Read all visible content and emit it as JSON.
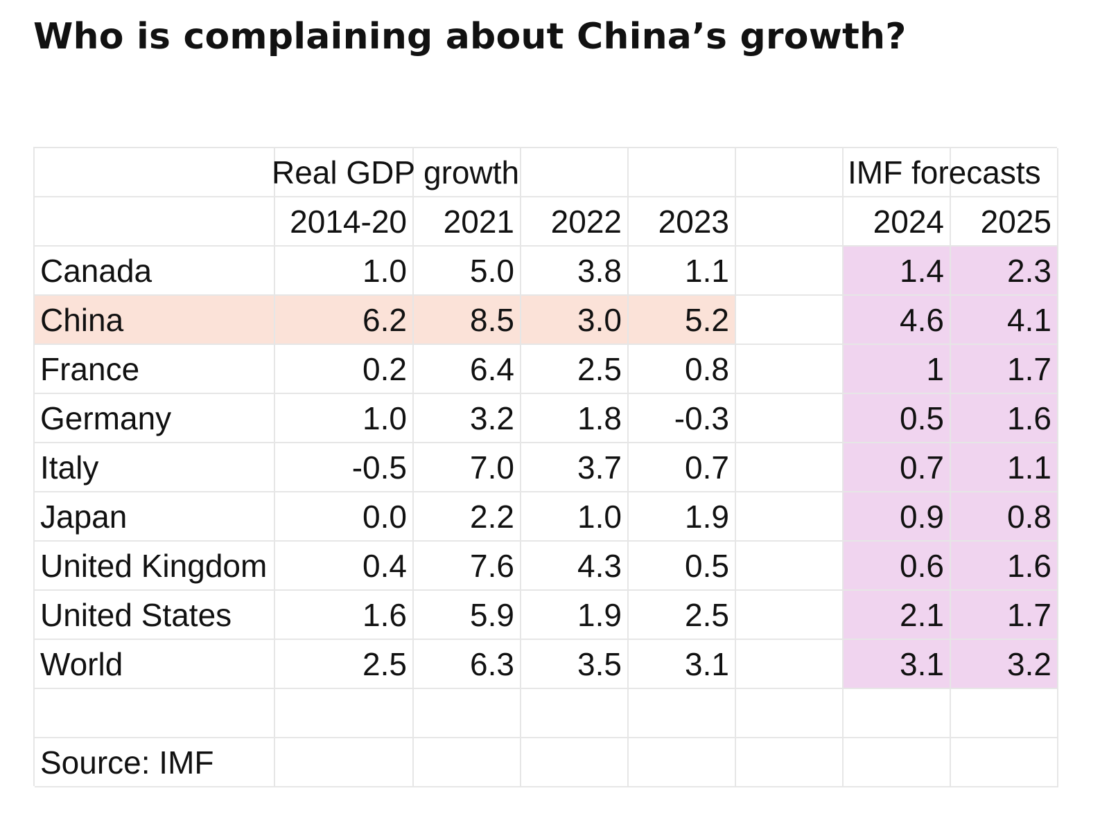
{
  "title": "Who is complaining about China’s growth?",
  "colors": {
    "china_row": "#fbe2d8",
    "forecast_block": "#f0d4ef",
    "gridline": "#e6e6e6",
    "text": "#111111"
  },
  "chart_data": {
    "type": "table",
    "title": "Who is complaining about China’s growth?",
    "group_headers": {
      "actual": "Real GDP growth",
      "forecast": "IMF forecasts"
    },
    "columns": [
      "2014-20",
      "2021",
      "2022",
      "2023",
      "2024",
      "2025"
    ],
    "forecast_columns": [
      "2024",
      "2025"
    ],
    "highlight_row": "China",
    "rows": [
      {
        "country": "Canada",
        "values": [
          "1.0",
          "5.0",
          "3.8",
          "1.1"
        ],
        "forecast": [
          "1.4",
          "2.3"
        ]
      },
      {
        "country": "China",
        "values": [
          "6.2",
          "8.5",
          "3.0",
          "5.2"
        ],
        "forecast": [
          "4.6",
          "4.1"
        ]
      },
      {
        "country": "France",
        "values": [
          "0.2",
          "6.4",
          "2.5",
          "0.8"
        ],
        "forecast": [
          "1",
          "1.7"
        ]
      },
      {
        "country": "Germany",
        "values": [
          "1.0",
          "3.2",
          "1.8",
          "-0.3"
        ],
        "forecast": [
          "0.5",
          "1.6"
        ]
      },
      {
        "country": "Italy",
        "values": [
          "-0.5",
          "7.0",
          "3.7",
          "0.7"
        ],
        "forecast": [
          "0.7",
          "1.1"
        ]
      },
      {
        "country": "Japan",
        "values": [
          "0.0",
          "2.2",
          "1.0",
          "1.9"
        ],
        "forecast": [
          "0.9",
          "0.8"
        ]
      },
      {
        "country": "United Kingdom",
        "values": [
          "0.4",
          "7.6",
          "4.3",
          "0.5"
        ],
        "forecast": [
          "0.6",
          "1.6"
        ]
      },
      {
        "country": "United States",
        "values": [
          "1.6",
          "5.9",
          "1.9",
          "2.5"
        ],
        "forecast": [
          "2.1",
          "1.7"
        ]
      },
      {
        "country": "World",
        "values": [
          "2.5",
          "6.3",
          "3.5",
          "3.1"
        ],
        "forecast": [
          "3.1",
          "3.2"
        ]
      }
    ],
    "source": "Source: IMF"
  }
}
